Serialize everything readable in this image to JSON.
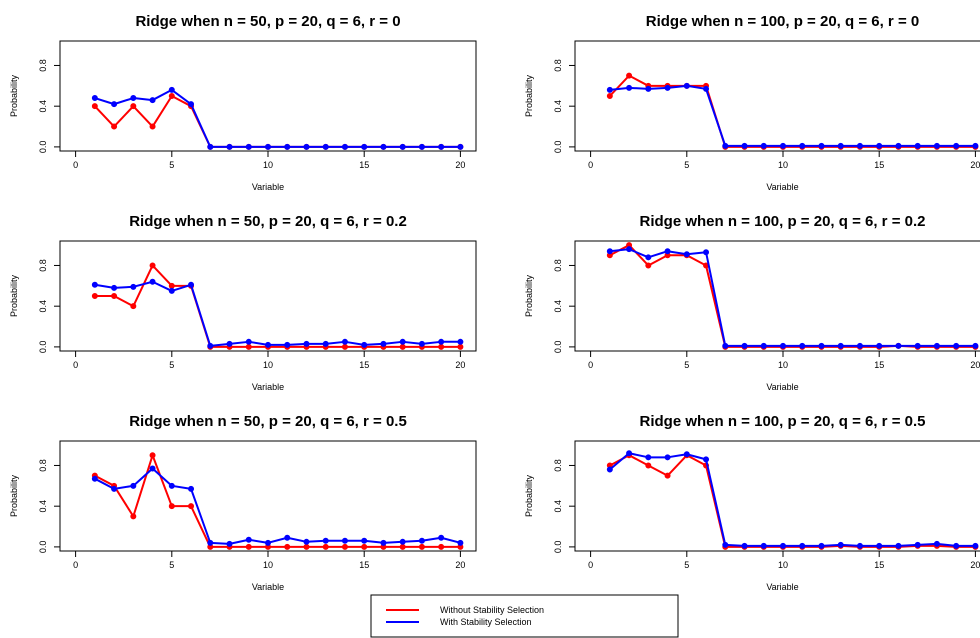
{
  "chart_data": [
    {
      "type": "line",
      "title": "Ridge when n = 50, p = 20, q = 6, r = 0",
      "xlabel": "Variable",
      "ylabel": "Probability",
      "xlim": [
        0,
        20
      ],
      "ylim": [
        0,
        1
      ],
      "x_ticks": [
        0,
        5,
        10,
        15,
        20
      ],
      "y_ticks": [
        0.0,
        0.4,
        0.8
      ],
      "x": [
        1,
        2,
        3,
        4,
        5,
        6,
        7,
        8,
        9,
        10,
        11,
        12,
        13,
        14,
        15,
        16,
        17,
        18,
        19,
        20
      ],
      "series": [
        {
          "name": "Without Stability Selection",
          "color": "#ff0000",
          "values": [
            0.4,
            0.2,
            0.4,
            0.2,
            0.5,
            0.4,
            0,
            0,
            0,
            0,
            0,
            0,
            0,
            0,
            0,
            0,
            0,
            0,
            0,
            0
          ]
        },
        {
          "name": "With Stability Selection",
          "color": "#0000ff",
          "values": [
            0.48,
            0.42,
            0.48,
            0.46,
            0.56,
            0.42,
            0,
            0,
            0,
            0,
            0,
            0,
            0,
            0,
            0,
            0,
            0,
            0,
            0,
            0
          ]
        }
      ]
    },
    {
      "type": "line",
      "title": "Ridge when n = 100, p = 20, q = 6, r = 0",
      "xlabel": "Variable",
      "ylabel": "Probability",
      "xlim": [
        0,
        20
      ],
      "ylim": [
        0,
        1
      ],
      "x_ticks": [
        0,
        5,
        10,
        15,
        20
      ],
      "y_ticks": [
        0.0,
        0.4,
        0.8
      ],
      "x": [
        1,
        2,
        3,
        4,
        5,
        6,
        7,
        8,
        9,
        10,
        11,
        12,
        13,
        14,
        15,
        16,
        17,
        18,
        19,
        20
      ],
      "series": [
        {
          "name": "Without Stability Selection",
          "color": "#ff0000",
          "values": [
            0.5,
            0.7,
            0.6,
            0.6,
            0.6,
            0.6,
            0,
            0,
            0,
            0,
            0,
            0,
            0,
            0,
            0,
            0,
            0,
            0,
            0,
            0
          ]
        },
        {
          "name": "With Stability Selection",
          "color": "#0000ff",
          "values": [
            0.56,
            0.58,
            0.57,
            0.58,
            0.6,
            0.57,
            0.01,
            0.01,
            0.01,
            0.01,
            0.01,
            0.01,
            0.01,
            0.01,
            0.01,
            0.01,
            0.01,
            0.01,
            0.01,
            0.01
          ]
        }
      ]
    },
    {
      "type": "line",
      "title": "Ridge when n = 50, p = 20, q = 6, r = 0.2",
      "xlabel": "Variable",
      "ylabel": "Probability",
      "xlim": [
        0,
        20
      ],
      "ylim": [
        0,
        1
      ],
      "x_ticks": [
        0,
        5,
        10,
        15,
        20
      ],
      "y_ticks": [
        0.0,
        0.4,
        0.8
      ],
      "x": [
        1,
        2,
        3,
        4,
        5,
        6,
        7,
        8,
        9,
        10,
        11,
        12,
        13,
        14,
        15,
        16,
        17,
        18,
        19,
        20
      ],
      "series": [
        {
          "name": "Without Stability Selection",
          "color": "#ff0000",
          "values": [
            0.5,
            0.5,
            0.4,
            0.8,
            0.6,
            0.6,
            0,
            0,
            0,
            0,
            0,
            0,
            0,
            0,
            0,
            0,
            0,
            0,
            0,
            0
          ]
        },
        {
          "name": "With Stability Selection",
          "color": "#0000ff",
          "values": [
            0.61,
            0.58,
            0.59,
            0.64,
            0.55,
            0.61,
            0.01,
            0.03,
            0.05,
            0.02,
            0.02,
            0.03,
            0.03,
            0.05,
            0.02,
            0.03,
            0.05,
            0.03,
            0.05,
            0.05
          ]
        }
      ]
    },
    {
      "type": "line",
      "title": "Ridge when n = 100, p = 20, q = 6, r = 0.2",
      "xlabel": "Variable",
      "ylabel": "Probability",
      "xlim": [
        0,
        20
      ],
      "ylim": [
        0,
        1
      ],
      "x_ticks": [
        0,
        5,
        10,
        15,
        20
      ],
      "y_ticks": [
        0.0,
        0.4,
        0.8
      ],
      "x": [
        1,
        2,
        3,
        4,
        5,
        6,
        7,
        8,
        9,
        10,
        11,
        12,
        13,
        14,
        15,
        16,
        17,
        18,
        19,
        20
      ],
      "series": [
        {
          "name": "Without Stability Selection",
          "color": "#ff0000",
          "values": [
            0.9,
            1.0,
            0.8,
            0.9,
            0.9,
            0.8,
            0,
            0,
            0,
            0,
            0,
            0,
            0,
            0,
            0,
            0.01,
            0,
            0,
            0,
            0
          ]
        },
        {
          "name": "With Stability Selection",
          "color": "#0000ff",
          "values": [
            0.94,
            0.96,
            0.88,
            0.94,
            0.91,
            0.93,
            0.01,
            0.01,
            0.01,
            0.01,
            0.01,
            0.01,
            0.01,
            0.01,
            0.01,
            0.01,
            0.01,
            0.01,
            0.01,
            0.01
          ]
        }
      ]
    },
    {
      "type": "line",
      "title": "Ridge when n = 50, p = 20, q = 6, r = 0.5",
      "xlabel": "Variable",
      "ylabel": "Probability",
      "xlim": [
        0,
        20
      ],
      "ylim": [
        0,
        1
      ],
      "x_ticks": [
        0,
        5,
        10,
        15,
        20
      ],
      "y_ticks": [
        0.0,
        0.4,
        0.8
      ],
      "x": [
        1,
        2,
        3,
        4,
        5,
        6,
        7,
        8,
        9,
        10,
        11,
        12,
        13,
        14,
        15,
        16,
        17,
        18,
        19,
        20
      ],
      "series": [
        {
          "name": "Without Stability Selection",
          "color": "#ff0000",
          "values": [
            0.7,
            0.6,
            0.3,
            0.9,
            0.4,
            0.4,
            0,
            0,
            0,
            0,
            0,
            0,
            0,
            0,
            0,
            0,
            0,
            0,
            0,
            0
          ]
        },
        {
          "name": "With Stability Selection",
          "color": "#0000ff",
          "values": [
            0.67,
            0.57,
            0.6,
            0.77,
            0.6,
            0.57,
            0.04,
            0.03,
            0.07,
            0.04,
            0.09,
            0.05,
            0.06,
            0.06,
            0.06,
            0.04,
            0.05,
            0.06,
            0.09,
            0.04
          ]
        }
      ]
    },
    {
      "type": "line",
      "title": "Ridge when n = 100, p = 20, q = 6, r = 0.5",
      "xlabel": "Variable",
      "ylabel": "Probability",
      "xlim": [
        0,
        20
      ],
      "ylim": [
        0,
        1
      ],
      "x_ticks": [
        0,
        5,
        10,
        15,
        20
      ],
      "y_ticks": [
        0.0,
        0.4,
        0.8
      ],
      "x": [
        1,
        2,
        3,
        4,
        5,
        6,
        7,
        8,
        9,
        10,
        11,
        12,
        13,
        14,
        15,
        16,
        17,
        18,
        19,
        20
      ],
      "series": [
        {
          "name": "Without Stability Selection",
          "color": "#ff0000",
          "values": [
            0.8,
            0.9,
            0.8,
            0.7,
            0.9,
            0.8,
            0,
            0,
            0,
            0,
            0,
            0,
            0.01,
            0,
            0,
            0,
            0.01,
            0.01,
            0,
            0
          ]
        },
        {
          "name": "With Stability Selection",
          "color": "#0000ff",
          "values": [
            0.76,
            0.92,
            0.88,
            0.88,
            0.91,
            0.86,
            0.02,
            0.01,
            0.01,
            0.01,
            0.01,
            0.01,
            0.02,
            0.01,
            0.01,
            0.01,
            0.02,
            0.03,
            0.01,
            0.01
          ]
        }
      ]
    }
  ],
  "legend": [
    {
      "label": "Without Stability Selection",
      "color": "#ff0000"
    },
    {
      "label": "With Stability Selection",
      "color": "#0000ff"
    }
  ]
}
